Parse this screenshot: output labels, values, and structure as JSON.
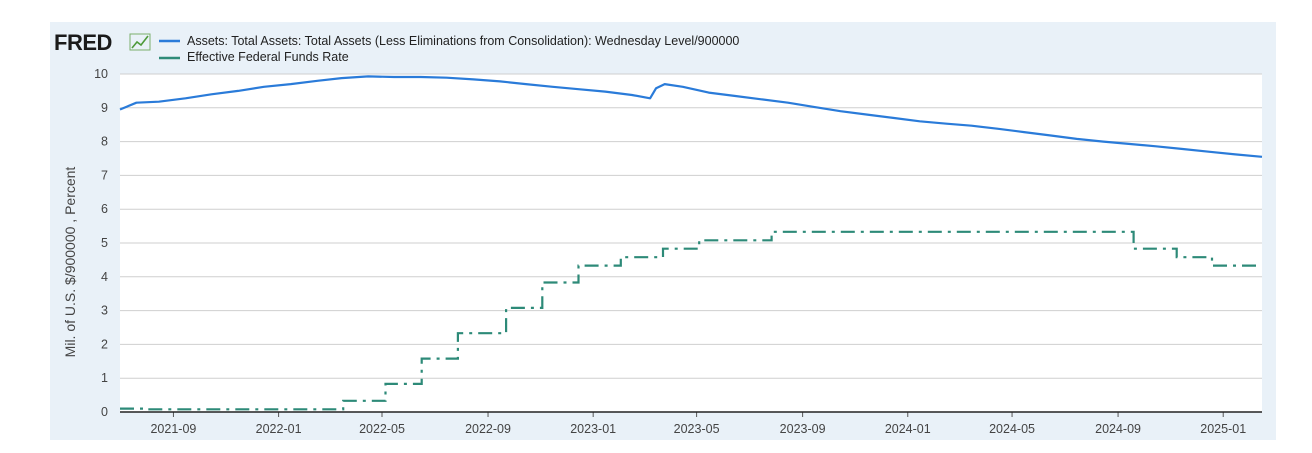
{
  "logo": {
    "text": "FRED"
  },
  "colors": {
    "assets": "#2a7bd9",
    "effr": "#2d8a78",
    "panel": "#e9f1f8",
    "plot": "#ffffff",
    "grid": "#cfcfcf"
  },
  "chart_data": {
    "type": "line",
    "ylabel": "Mil. of U.S. $/900000 , Percent",
    "ylim": [
      0,
      10
    ],
    "yticks": [
      "0",
      "1",
      "2",
      "3",
      "4",
      "5",
      "6",
      "7",
      "8",
      "9",
      "10"
    ],
    "xlim": [
      "2021-07-01",
      "2025-02-15"
    ],
    "xticks": [
      {
        "label": "2021-09",
        "date": "2021-09-01"
      },
      {
        "label": "2022-01",
        "date": "2022-01-01"
      },
      {
        "label": "2022-05",
        "date": "2022-05-01"
      },
      {
        "label": "2022-09",
        "date": "2022-09-01"
      },
      {
        "label": "2023-01",
        "date": "2023-01-01"
      },
      {
        "label": "2023-05",
        "date": "2023-05-01"
      },
      {
        "label": "2023-09",
        "date": "2023-09-01"
      },
      {
        "label": "2024-01",
        "date": "2024-01-01"
      },
      {
        "label": "2024-05",
        "date": "2024-05-01"
      },
      {
        "label": "2024-09",
        "date": "2024-09-01"
      },
      {
        "label": "2025-01",
        "date": "2025-01-01"
      }
    ],
    "grid": true,
    "legend_position": "top-left",
    "series": [
      {
        "name": "Assets: Total Assets: Total Assets (Less Eliminations from Consolidation): Wednesday Level/900000",
        "style": "solid",
        "points": [
          [
            "2021-07-01",
            8.95
          ],
          [
            "2021-07-20",
            9.15
          ],
          [
            "2021-08-15",
            9.18
          ],
          [
            "2021-09-15",
            9.28
          ],
          [
            "2021-10-15",
            9.4
          ],
          [
            "2021-11-15",
            9.5
          ],
          [
            "2021-12-15",
            9.62
          ],
          [
            "2022-01-15",
            9.7
          ],
          [
            "2022-02-15",
            9.8
          ],
          [
            "2022-03-15",
            9.88
          ],
          [
            "2022-04-15",
            9.93
          ],
          [
            "2022-05-15",
            9.91
          ],
          [
            "2022-06-15",
            9.91
          ],
          [
            "2022-07-15",
            9.89
          ],
          [
            "2022-08-15",
            9.84
          ],
          [
            "2022-09-15",
            9.78
          ],
          [
            "2022-10-15",
            9.7
          ],
          [
            "2022-11-15",
            9.62
          ],
          [
            "2022-12-15",
            9.55
          ],
          [
            "2023-01-15",
            9.48
          ],
          [
            "2023-02-15",
            9.38
          ],
          [
            "2023-03-08",
            9.28
          ],
          [
            "2023-03-15",
            9.58
          ],
          [
            "2023-03-25",
            9.7
          ],
          [
            "2023-04-15",
            9.62
          ],
          [
            "2023-05-15",
            9.45
          ],
          [
            "2023-06-15",
            9.35
          ],
          [
            "2023-07-15",
            9.25
          ],
          [
            "2023-08-15",
            9.15
          ],
          [
            "2023-09-15",
            9.02
          ],
          [
            "2023-10-15",
            8.9
          ],
          [
            "2023-11-15",
            8.8
          ],
          [
            "2023-12-15",
            8.7
          ],
          [
            "2024-01-15",
            8.6
          ],
          [
            "2024-02-15",
            8.53
          ],
          [
            "2024-03-15",
            8.47
          ],
          [
            "2024-04-15",
            8.38
          ],
          [
            "2024-05-15",
            8.28
          ],
          [
            "2024-06-15",
            8.18
          ],
          [
            "2024-07-15",
            8.08
          ],
          [
            "2024-08-15",
            8.0
          ],
          [
            "2024-09-15",
            7.93
          ],
          [
            "2024-10-15",
            7.86
          ],
          [
            "2024-11-15",
            7.78
          ],
          [
            "2024-12-15",
            7.7
          ],
          [
            "2025-01-15",
            7.62
          ],
          [
            "2025-02-15",
            7.55
          ]
        ]
      },
      {
        "name": "Effective Federal Funds Rate",
        "style": "dashdot",
        "step": true,
        "points": [
          [
            "2021-07-01",
            0.1
          ],
          [
            "2021-08-01",
            0.08
          ],
          [
            "2022-03-17",
            0.33
          ],
          [
            "2022-05-05",
            0.83
          ],
          [
            "2022-06-16",
            1.58
          ],
          [
            "2022-07-28",
            2.33
          ],
          [
            "2022-09-22",
            3.08
          ],
          [
            "2022-11-03",
            3.83
          ],
          [
            "2022-12-15",
            4.33
          ],
          [
            "2023-02-02",
            4.58
          ],
          [
            "2023-03-23",
            4.83
          ],
          [
            "2023-05-04",
            5.08
          ],
          [
            "2023-07-27",
            5.33
          ],
          [
            "2024-09-19",
            4.83
          ],
          [
            "2024-11-08",
            4.58
          ],
          [
            "2024-12-19",
            4.33
          ],
          [
            "2025-02-15",
            4.33
          ]
        ]
      }
    ]
  }
}
